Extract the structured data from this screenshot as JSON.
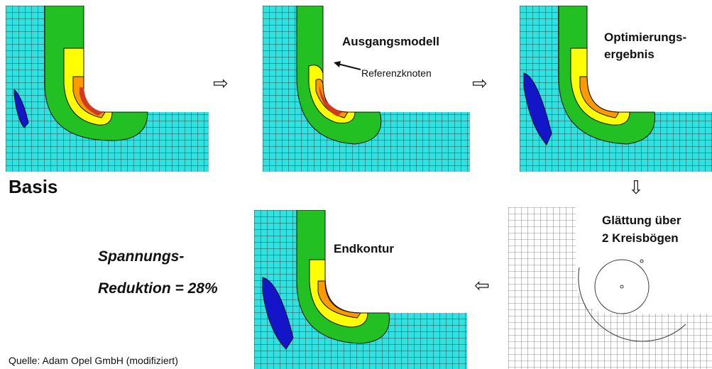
{
  "labels": {
    "basis": "Basis",
    "ausgangsmodell": "Ausgangsmodell",
    "referenzknoten": "Referenzknoten",
    "optimierung_1": "Optimierungs-",
    "optimierung_2": "ergebnis",
    "glaettung_1": "Glättung über",
    "glaettung_2": "2 Kreisbögen",
    "endkontur": "Endkontur",
    "reduktion_1": "Spannungs-",
    "reduktion_2": "Reduktion = 28%",
    "source": "Quelle: Adam Opel GmbH (modifiziert)"
  },
  "arrows": {
    "right": "⇨",
    "down": "⇩",
    "left": "⇦"
  },
  "colors": {
    "mesh_fill": "#33e0e0",
    "green": "#22c022",
    "yellow": "#ffff00",
    "orange": "#ff9900",
    "red": "#d23c1e",
    "blue": "#1414c8",
    "mesh_line": "#1a1a1a"
  }
}
